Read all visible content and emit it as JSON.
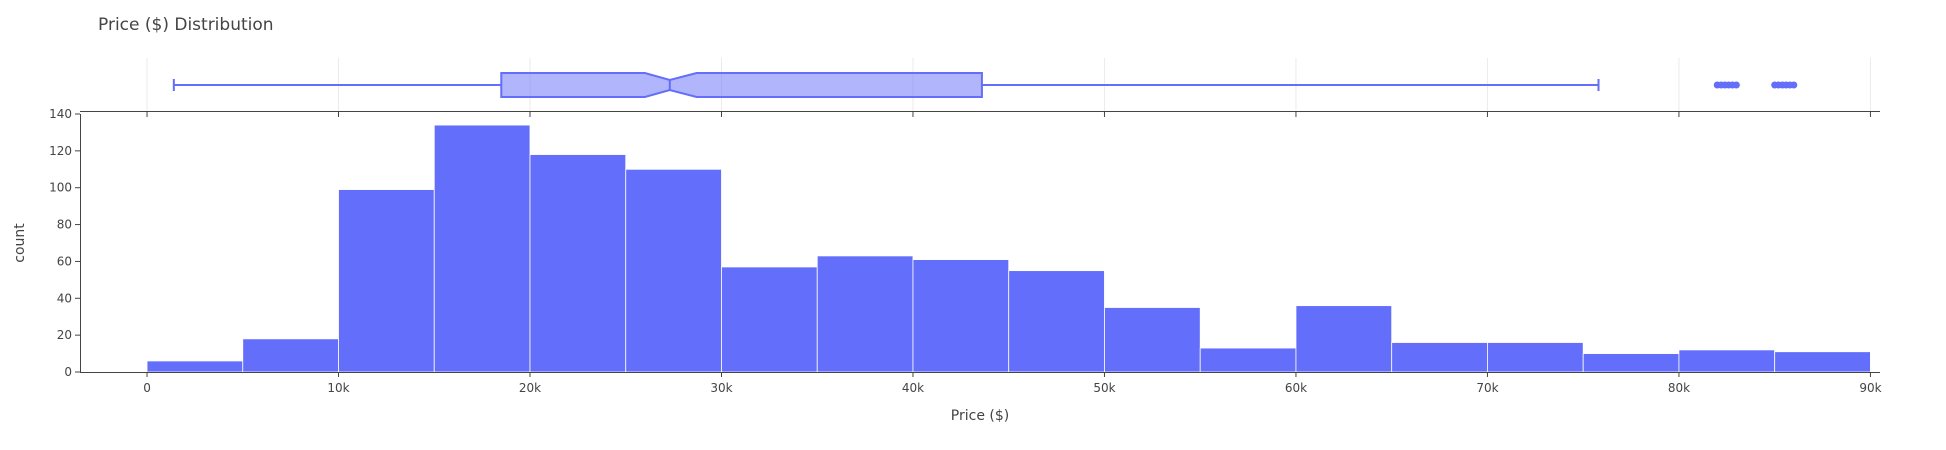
{
  "chart_data": [
    {
      "type": "box",
      "orientation": "horizontal",
      "notched": true,
      "color": "#636efa",
      "box": {
        "min": 1400,
        "q1": 18500,
        "median": 27300,
        "notch_low": 26000,
        "notch_high": 28700,
        "q3": 43600,
        "max": 75800
      },
      "outliers": [
        82000,
        82200,
        82400,
        82600,
        82800,
        83000,
        85000,
        85200,
        85400,
        85600,
        85800,
        86000
      ],
      "xlim": [
        -3500,
        90500
      ],
      "grid": true
    },
    {
      "type": "histogram",
      "title": "Price ($) Distribution",
      "xlabel": "Price ($)",
      "ylabel": "count",
      "color": "#636efa",
      "bin_edges": [
        0,
        5000,
        10000,
        15000,
        20000,
        25000,
        30000,
        35000,
        40000,
        45000,
        50000,
        55000,
        60000,
        65000,
        70000,
        75000,
        80000,
        85000,
        90000
      ],
      "counts": [
        6,
        18,
        99,
        134,
        118,
        110,
        57,
        63,
        61,
        55,
        35,
        13,
        36,
        16,
        16,
        10,
        12,
        11
      ],
      "xlim": [
        -3500,
        90500
      ],
      "ylim": [
        0,
        140
      ],
      "x_ticks": [
        {
          "value": 0,
          "label": "0"
        },
        {
          "value": 10000,
          "label": "10k"
        },
        {
          "value": 20000,
          "label": "20k"
        },
        {
          "value": 30000,
          "label": "30k"
        },
        {
          "value": 40000,
          "label": "40k"
        },
        {
          "value": 50000,
          "label": "50k"
        },
        {
          "value": 60000,
          "label": "60k"
        },
        {
          "value": 70000,
          "label": "70k"
        },
        {
          "value": 80000,
          "label": "80k"
        },
        {
          "value": 90000,
          "label": "90k"
        }
      ],
      "y_ticks": [
        {
          "value": 0,
          "label": "0"
        },
        {
          "value": 20,
          "label": "20"
        },
        {
          "value": 40,
          "label": "40"
        },
        {
          "value": 60,
          "label": "60"
        },
        {
          "value": 80,
          "label": "80"
        },
        {
          "value": 100,
          "label": "100"
        },
        {
          "value": 120,
          "label": "120"
        },
        {
          "value": 140,
          "label": "140"
        }
      ]
    }
  ]
}
